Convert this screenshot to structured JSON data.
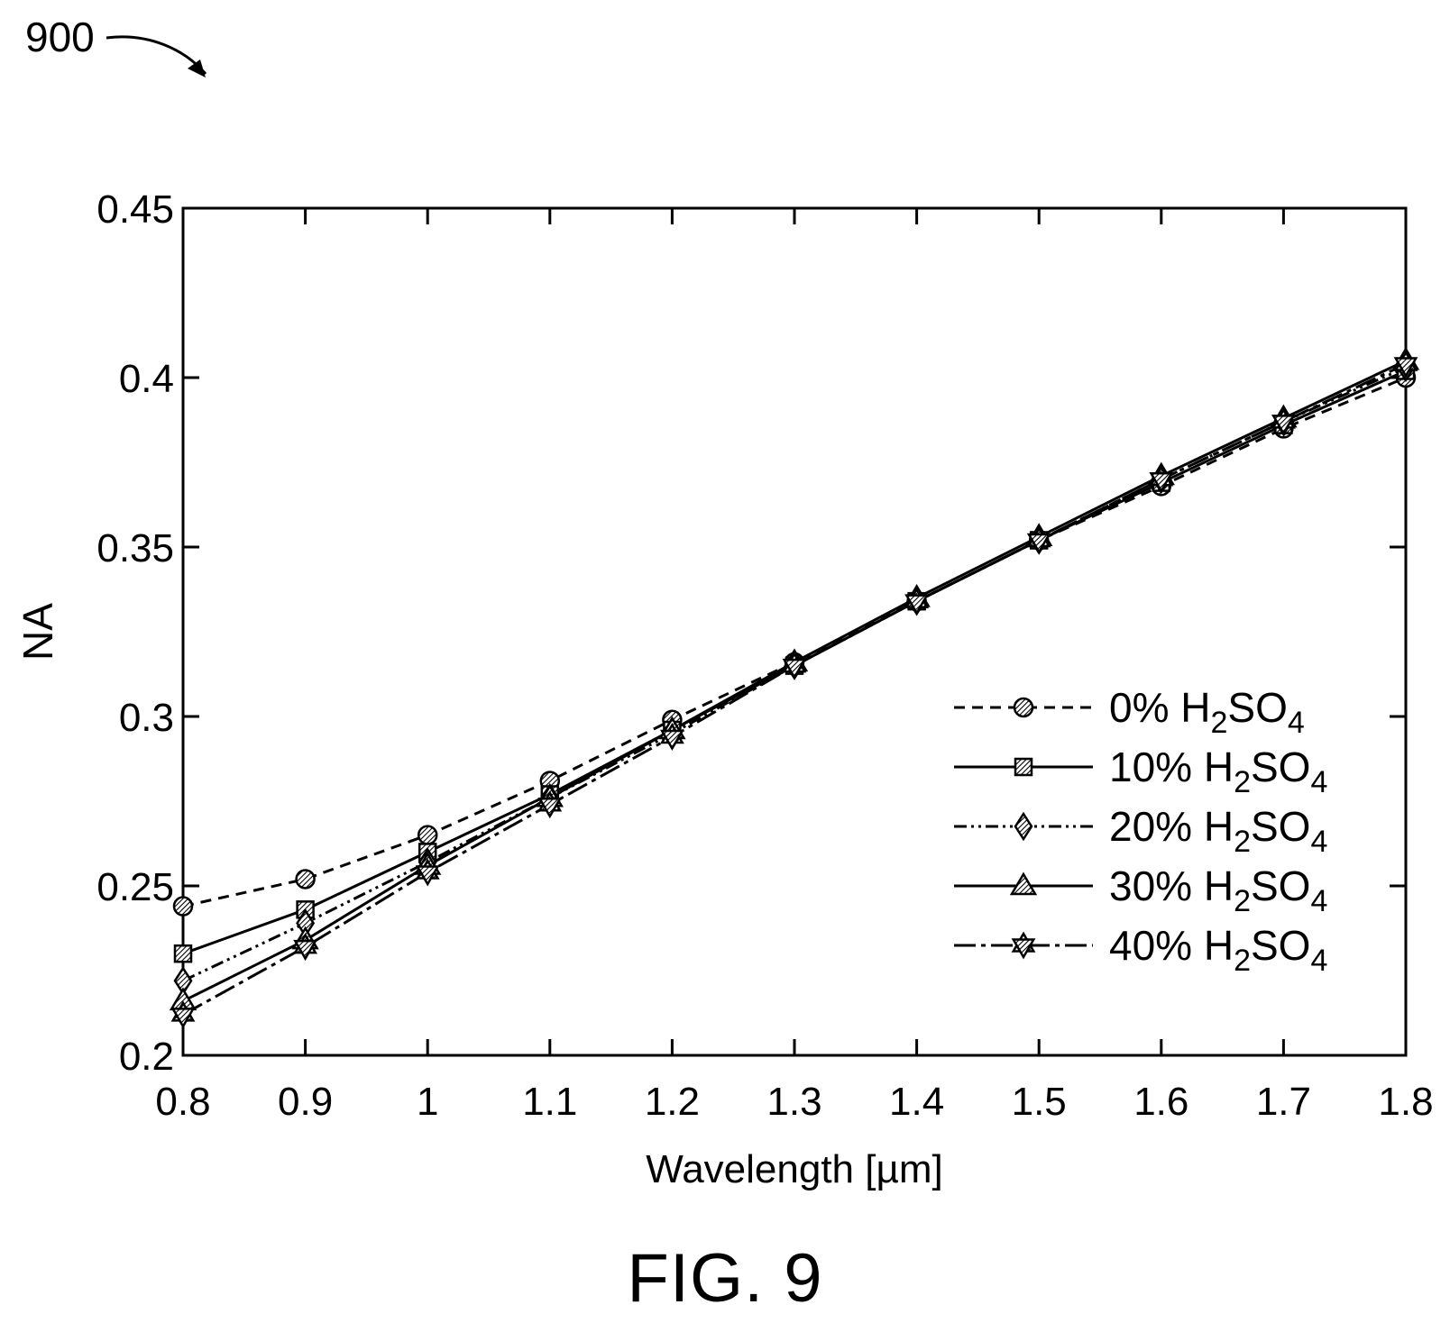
{
  "figure": {
    "ref_number": "900",
    "caption": "FIG. 9"
  },
  "chart_data": {
    "type": "line",
    "xlabel": "Wavelength [µm]",
    "ylabel": "NA",
    "xlim": [
      0.8,
      1.8
    ],
    "ylim": [
      0.2,
      0.45
    ],
    "x_ticks": [
      "0.8",
      "0.9",
      "1",
      "1.1",
      "1.2",
      "1.3",
      "1.4",
      "1.5",
      "1.6",
      "1.7",
      "1.8"
    ],
    "y_ticks": [
      "0.2",
      "0.25",
      "0.3",
      "0.35",
      "0.4",
      "0.45"
    ],
    "grid": false,
    "legend_position": "bottom-right",
    "x": [
      0.8,
      0.9,
      1.0,
      1.1,
      1.2,
      1.3,
      1.4,
      1.5,
      1.6,
      1.7,
      1.8
    ],
    "series": [
      {
        "name": "0% H2SO4",
        "label_main": "0% H",
        "sub1": "2",
        "mid": "SO",
        "sub2": "4",
        "marker": "circle",
        "dash": "12,8",
        "values": [
          0.244,
          0.252,
          0.265,
          0.281,
          0.299,
          0.316,
          0.334,
          0.352,
          0.368,
          0.385,
          0.4
        ]
      },
      {
        "name": "10% H2SO4",
        "label_main": "10% H",
        "sub1": "2",
        "mid": "SO",
        "sub2": "4",
        "marker": "square",
        "dash": "",
        "values": [
          0.23,
          0.243,
          0.26,
          0.277,
          0.296,
          0.315,
          0.334,
          0.352,
          0.369,
          0.386,
          0.402
        ]
      },
      {
        "name": "20% H2SO4",
        "label_main": "20% H",
        "sub1": "2",
        "mid": "SO",
        "sub2": "4",
        "marker": "diamond",
        "dash": "14,5,3,5,3,5",
        "values": [
          0.222,
          0.239,
          0.257,
          0.276,
          0.295,
          0.315,
          0.334,
          0.352,
          0.37,
          0.387,
          0.403
        ]
      },
      {
        "name": "30% H2SO4",
        "label_main": "30% H",
        "sub1": "2",
        "mid": "SO",
        "sub2": "4",
        "marker": "triangle",
        "dash": "",
        "values": [
          0.216,
          0.234,
          0.256,
          0.276,
          0.296,
          0.316,
          0.335,
          0.353,
          0.371,
          0.388,
          0.405
        ]
      },
      {
        "name": "40% H2SO4",
        "label_main": "40% H",
        "sub1": "2",
        "mid": "SO",
        "sub2": "4",
        "marker": "star",
        "dash": "24,6,5,6",
        "values": [
          0.212,
          0.232,
          0.254,
          0.274,
          0.294,
          0.315,
          0.334,
          0.352,
          0.37,
          0.387,
          0.404
        ]
      }
    ]
  }
}
